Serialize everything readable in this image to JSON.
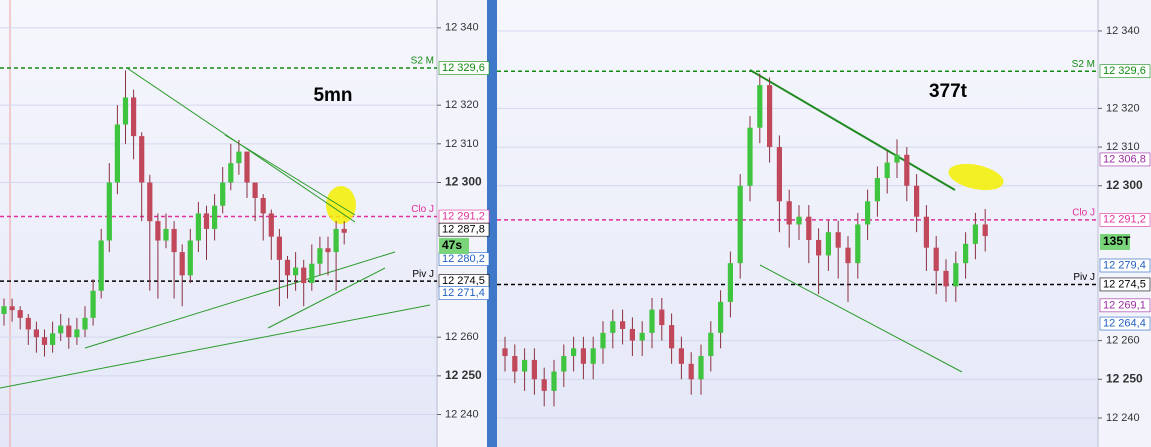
{
  "chart_data": [
    {
      "type": "candlestick",
      "title": "5mn",
      "countdown": "47s",
      "up_color": "#3ec43e",
      "down_color": "#c0485a",
      "ylim": [
        12231.6,
        12347.2
      ],
      "yticks": [
        {
          "value": 12340,
          "label": "12 340"
        },
        {
          "value": 12320,
          "label": "12 320"
        },
        {
          "value": 12310,
          "label": "12 310"
        },
        {
          "value": 12300,
          "label": "12 300",
          "bold": true
        },
        {
          "value": 12260,
          "label": "12 260"
        },
        {
          "value": 12250,
          "label": "12 250",
          "bold": true
        },
        {
          "value": 12240,
          "label": "12 240"
        }
      ],
      "levels": [
        {
          "name": "S2 M",
          "value": 12329.6,
          "label": "12 329,6",
          "color": "#138a13"
        },
        {
          "name": "Clo J",
          "value": 12291.2,
          "label": "12 291,2",
          "color": "#e0309a"
        },
        {
          "name": "Piv J",
          "value": 12274.5,
          "label": "12 274,5",
          "color": "#000000"
        }
      ],
      "price_labels": [
        {
          "value": 12287.8,
          "label": "12 287,8",
          "color": "#000000"
        },
        {
          "value": 12280.2,
          "label": "12 280,2",
          "color": "#2060c0"
        },
        {
          "value": 12271.4,
          "label": "12 271,4",
          "color": "#2060c0"
        }
      ],
      "open": [
        12266,
        12268,
        12267,
        12265,
        12262,
        12260,
        12258,
        12261,
        12263,
        12260,
        12262,
        12265,
        12272,
        12285,
        12300,
        12315,
        12322,
        12312,
        12300,
        12290,
        12285,
        12288,
        12282,
        12276,
        12285,
        12292,
        12288,
        12294,
        12300,
        12305,
        12308,
        12300,
        12296,
        12292,
        12286,
        12280,
        12276,
        12278,
        12274,
        12279,
        12283,
        12282,
        12288
      ],
      "high": [
        12270,
        12270,
        12268,
        12266,
        12264,
        12262,
        12264,
        12266,
        12265,
        12265,
        12268,
        12275,
        12288,
        12305,
        12320,
        12329,
        12324,
        12313,
        12302,
        12292,
        12292,
        12290,
        12284,
        12288,
        12295,
        12294,
        12297,
        12304,
        12310,
        12311,
        12308,
        12300,
        12297,
        12293,
        12288,
        12281,
        12282,
        12280,
        12284,
        12286,
        12286,
        12290,
        12290
      ],
      "low": [
        12263,
        12264,
        12262,
        12258,
        12256,
        12255,
        12256,
        12259,
        12257,
        12258,
        12260,
        12263,
        12270,
        12282,
        12297,
        12310,
        12306,
        12290,
        12272,
        12270,
        12283,
        12270,
        12268,
        12274,
        12282,
        12280,
        12285,
        12292,
        12298,
        12302,
        12296,
        12290,
        12285,
        12280,
        12268,
        12270,
        12272,
        12268,
        12272,
        12276,
        12276,
        12272,
        12284
      ],
      "close": [
        12268,
        12267,
        12265,
        12262,
        12260,
        12258,
        12261,
        12263,
        12260,
        12262,
        12265,
        12272,
        12285,
        12300,
        12315,
        12322,
        12312,
        12300,
        12290,
        12285,
        12288,
        12282,
        12276,
        12285,
        12292,
        12288,
        12294,
        12300,
        12305,
        12308,
        12300,
        12296,
        12292,
        12286,
        12280,
        12276,
        12278,
        12274,
        12279,
        12283,
        12282,
        12288,
        12287
      ]
    },
    {
      "type": "candlestick",
      "title": "377t",
      "countdown": "135T",
      "up_color": "#3ec43e",
      "down_color": "#c0485a",
      "ylim": [
        12232.5,
        12348.0
      ],
      "yticks": [
        {
          "value": 12340,
          "label": "12 340"
        },
        {
          "value": 12320,
          "label": "12 320"
        },
        {
          "value": 12310,
          "label": "12 310"
        },
        {
          "value": 12300,
          "label": "12 300",
          "bold": true
        },
        {
          "value": 12260,
          "label": "12 260"
        },
        {
          "value": 12250,
          "label": "12 250",
          "bold": true
        },
        {
          "value": 12240,
          "label": "12 240"
        }
      ],
      "levels": [
        {
          "name": "S2 M",
          "value": 12329.6,
          "label": "12 329,6",
          "color": "#138a13"
        },
        {
          "name": "Clo J",
          "value": 12291.2,
          "label": "12 291,2",
          "color": "#e0309a"
        },
        {
          "name": "Piv J",
          "value": 12274.5,
          "label": "12 274,5",
          "color": "#000000"
        }
      ],
      "price_labels": [
        {
          "value": 12306.8,
          "label": "12 306,8",
          "color": "#9a2aa0"
        },
        {
          "value": 12279.4,
          "label": "12 279,4",
          "color": "#2060c0"
        },
        {
          "value": 12269.1,
          "label": "12 269,1",
          "color": "#9a2aa0"
        },
        {
          "value": 12264.4,
          "label": "12 264,4",
          "color": "#2060c0"
        }
      ],
      "open": [
        12258,
        12256,
        12252,
        12255,
        12250,
        12247,
        12252,
        12256,
        12258,
        12254,
        12258,
        12262,
        12265,
        12263,
        12260,
        12262,
        12268,
        12264,
        12258,
        12254,
        12250,
        12256,
        12262,
        12270,
        12280,
        12300,
        12315,
        12326,
        12310,
        12296,
        12290,
        12292,
        12286,
        12282,
        12288,
        12284,
        12280,
        12290,
        12296,
        12302,
        12306,
        12308,
        12300,
        12292,
        12284,
        12278,
        12274,
        12280,
        12285,
        12290
      ],
      "high": [
        12261,
        12259,
        12258,
        12258,
        12253,
        12255,
        12259,
        12261,
        12261,
        12261,
        12265,
        12268,
        12268,
        12266,
        12265,
        12271,
        12271,
        12267,
        12261,
        12257,
        12259,
        12265,
        12273,
        12283,
        12303,
        12318,
        12329,
        12328,
        12313,
        12299,
        12295,
        12295,
        12289,
        12291,
        12291,
        12287,
        12293,
        12299,
        12305,
        12309,
        12312,
        12310,
        12303,
        12295,
        12287,
        12281,
        12283,
        12288,
        12293,
        12294
      ],
      "low": [
        12252,
        12249,
        12247,
        12246,
        12243,
        12243,
        12248,
        12252,
        12250,
        12250,
        12254,
        12258,
        12259,
        12256,
        12256,
        12258,
        12260,
        12254,
        12250,
        12246,
        12246,
        12252,
        12258,
        12266,
        12276,
        12296,
        12311,
        12306,
        12288,
        12284,
        12286,
        12280,
        12272,
        12278,
        12276,
        12270,
        12276,
        12286,
        12292,
        12298,
        12302,
        12296,
        12288,
        12278,
        12272,
        12270,
        12270,
        12276,
        12281,
        12283
      ],
      "close": [
        12256,
        12252,
        12255,
        12250,
        12247,
        12252,
        12256,
        12258,
        12254,
        12258,
        12262,
        12265,
        12263,
        12260,
        12262,
        12268,
        12264,
        12258,
        12254,
        12250,
        12256,
        12262,
        12270,
        12280,
        12300,
        12315,
        12326,
        12310,
        12296,
        12290,
        12292,
        12286,
        12282,
        12288,
        12284,
        12280,
        12290,
        12296,
        12302,
        12306,
        12308,
        12300,
        12292,
        12284,
        12278,
        12274,
        12280,
        12285,
        12290,
        12287
      ]
    }
  ]
}
